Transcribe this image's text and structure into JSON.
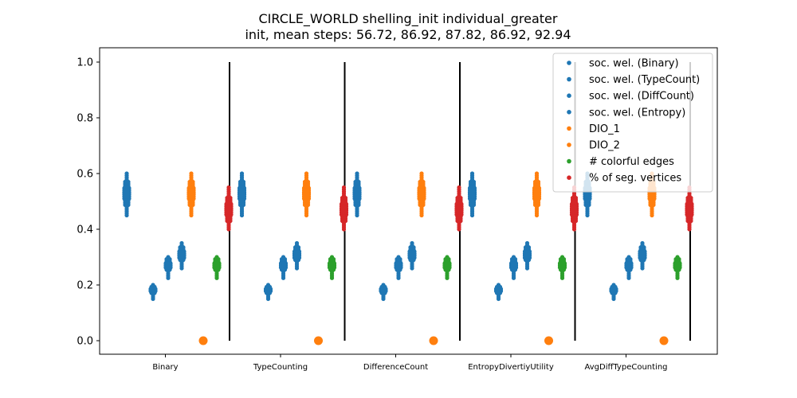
{
  "title_line1": "CIRCLE_WORLD shelling_init individual_greater",
  "title_line2": "init, mean steps: 56.72, 86.92, 87.82, 86.92, 92.94",
  "chart_data": {
    "type": "scatter",
    "title": "CIRCLE_WORLD shelling_init individual_greater\ninit, mean steps: 56.72, 86.92, 87.82, 86.92, 92.94",
    "xlabel": "",
    "ylabel": "",
    "ylim": [
      0,
      1.0
    ],
    "yticks": [
      "0.0",
      "0.2",
      "0.4",
      "0.6",
      "0.8",
      "1.0"
    ],
    "grid": false,
    "legend_position": "top-right",
    "categories": [
      "Binary",
      "TypeCounting",
      "DifferenceCount",
      "EntropyDivertiyUtility",
      "AvgDiffTypeCounting"
    ],
    "series": [
      {
        "name": "soc. wel. (Binary)",
        "color": "#1f77b4",
        "values": [
          0.53,
          0.53,
          0.53,
          0.53,
          0.53
        ],
        "range": [
          0.45,
          0.6
        ]
      },
      {
        "name": "soc. wel. (TypeCount)",
        "color": "#1f77b4",
        "values": [
          0.18,
          0.18,
          0.18,
          0.18,
          0.18
        ],
        "range": [
          0.15,
          0.2
        ]
      },
      {
        "name": "soc. wel. (DiffCount)",
        "color": "#1f77b4",
        "values": [
          0.27,
          0.27,
          0.27,
          0.27,
          0.27
        ],
        "range": [
          0.225,
          0.3
        ]
      },
      {
        "name": "soc. wel. (Entropy)",
        "color": "#1f77b4",
        "values": [
          0.31,
          0.31,
          0.31,
          0.31,
          0.31
        ],
        "range": [
          0.26,
          0.35
        ]
      },
      {
        "name": "DIO_1",
        "color": "#ff7f0e",
        "values": [
          0.0,
          0.0,
          0.0,
          0.0,
          0.0
        ],
        "range": [
          0.0,
          0.0
        ]
      },
      {
        "name": "DIO_2",
        "color": "#ff7f0e",
        "values": [
          0.53,
          0.53,
          0.53,
          0.53,
          0.53
        ],
        "range": [
          0.45,
          0.6
        ]
      },
      {
        "name": "# colorful edges",
        "color": "#2ca02c",
        "values": [
          0.27,
          0.27,
          0.27,
          0.27,
          0.27
        ],
        "range": [
          0.225,
          0.3
        ]
      },
      {
        "name": "% of seg. vertices",
        "color": "#d62728",
        "values": [
          0.47,
          0.47,
          0.47,
          0.47,
          0.47
        ],
        "range": [
          0.4,
          0.55
        ]
      }
    ]
  }
}
